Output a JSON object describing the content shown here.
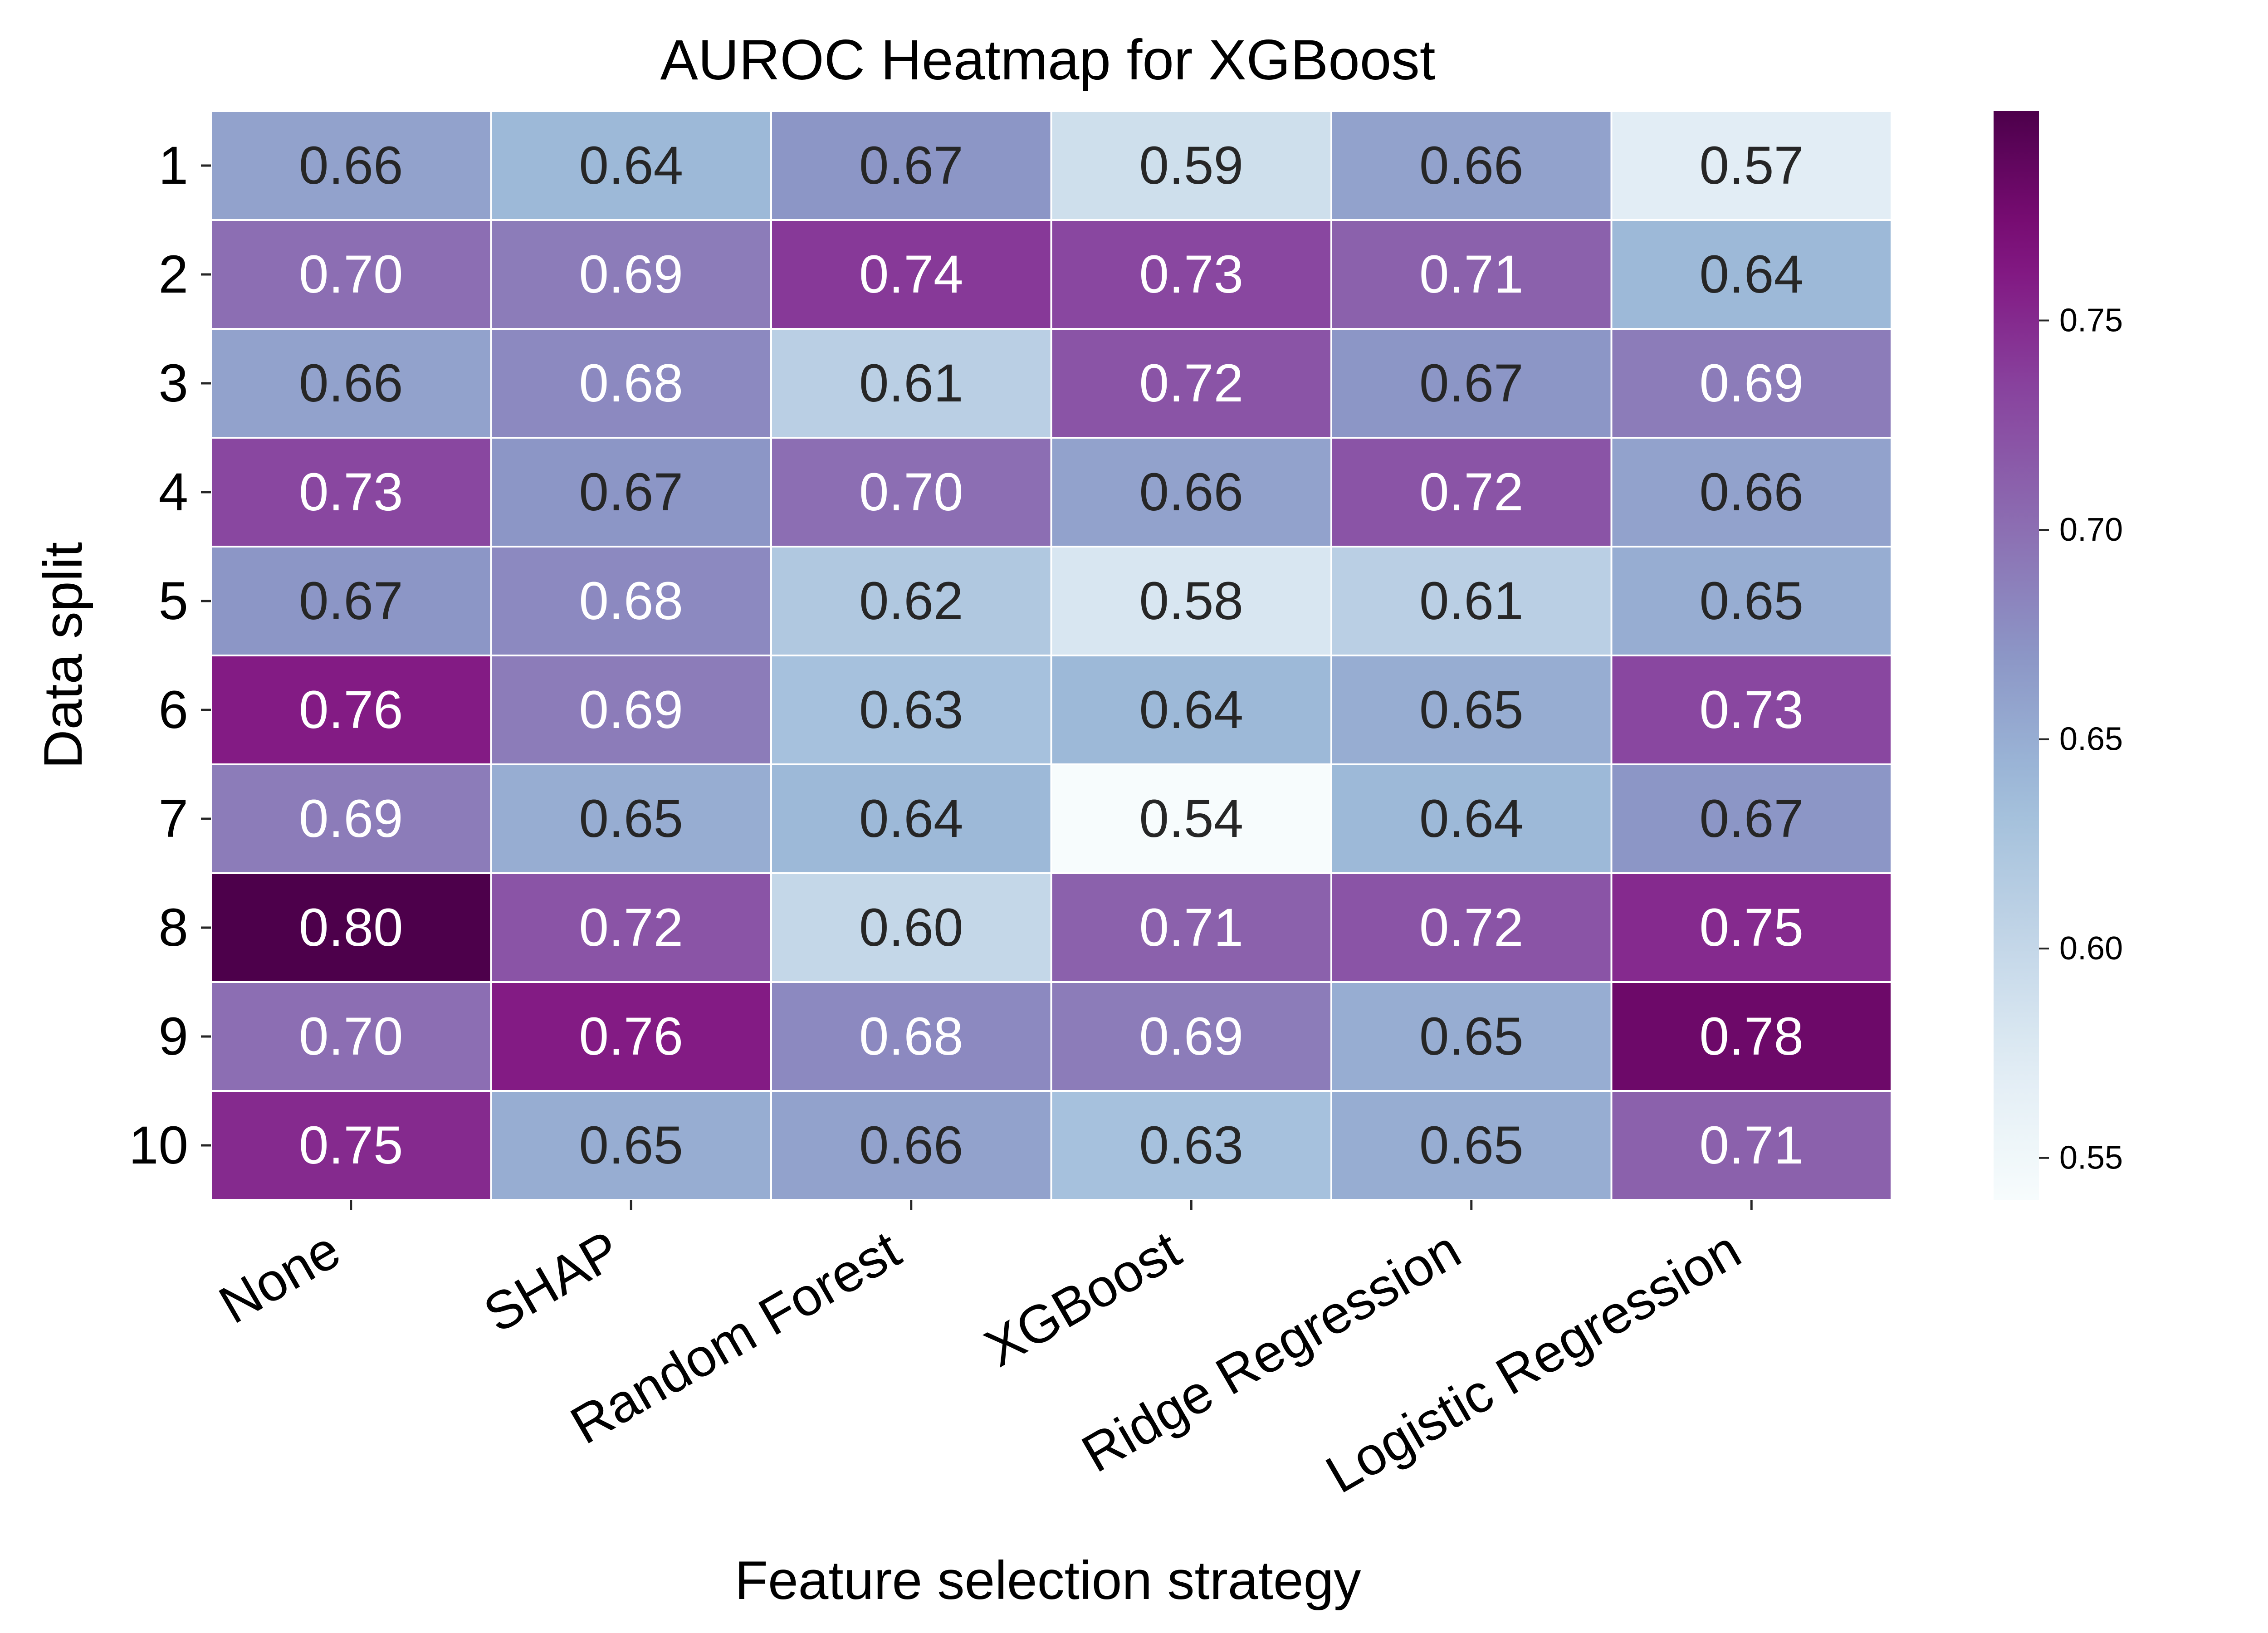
{
  "chart_data": {
    "type": "heatmap",
    "title": "AUROC Heatmap for XGBoost",
    "xlabel": "Feature selection strategy",
    "ylabel": "Data split",
    "x_categories": [
      "None",
      "SHAP",
      "Random Forest",
      "XGBoost",
      "Ridge Regression",
      "Logistic Regression"
    ],
    "y_categories": [
      "1",
      "2",
      "3",
      "4",
      "5",
      "6",
      "7",
      "8",
      "9",
      "10"
    ],
    "values": [
      [
        0.66,
        0.64,
        0.67,
        0.59,
        0.66,
        0.57
      ],
      [
        0.7,
        0.69,
        0.74,
        0.73,
        0.71,
        0.64
      ],
      [
        0.66,
        0.68,
        0.61,
        0.72,
        0.67,
        0.69
      ],
      [
        0.73,
        0.67,
        0.7,
        0.66,
        0.72,
        0.66
      ],
      [
        0.67,
        0.68,
        0.62,
        0.58,
        0.61,
        0.65
      ],
      [
        0.76,
        0.69,
        0.63,
        0.64,
        0.65,
        0.73
      ],
      [
        0.69,
        0.65,
        0.64,
        0.54,
        0.64,
        0.67
      ],
      [
        0.8,
        0.72,
        0.6,
        0.71,
        0.72,
        0.75
      ],
      [
        0.7,
        0.76,
        0.68,
        0.69,
        0.65,
        0.78
      ],
      [
        0.75,
        0.65,
        0.66,
        0.63,
        0.65,
        0.71
      ]
    ],
    "colormap": "BuPu",
    "colorbar": {
      "range": [
        0.54,
        0.8
      ],
      "ticks": [
        0.55,
        0.6,
        0.65,
        0.7,
        0.75
      ],
      "tick_labels": [
        "0.55",
        "0.60",
        "0.65",
        "0.70",
        "0.75"
      ]
    },
    "annotation_colors": {
      "dark": "#262626",
      "light": "#ffffff"
    },
    "gridlines": "white",
    "legend": "colorbar right"
  }
}
